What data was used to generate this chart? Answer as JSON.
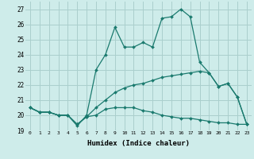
{
  "xlabel": "Humidex (Indice chaleur)",
  "background_color": "#ceecea",
  "grid_color": "#aacfcd",
  "line_color": "#1a7a6e",
  "x_ticks": [
    0,
    1,
    2,
    3,
    4,
    5,
    6,
    7,
    8,
    9,
    10,
    11,
    12,
    13,
    14,
    15,
    16,
    17,
    18,
    19,
    20,
    21,
    22,
    23
  ],
  "ylim": [
    19,
    27.5
  ],
  "yticks": [
    19,
    20,
    21,
    22,
    23,
    24,
    25,
    26,
    27
  ],
  "curve1_y": [
    20.5,
    20.2,
    20.2,
    20.0,
    20.0,
    19.3,
    20.0,
    23.0,
    24.0,
    25.8,
    24.5,
    24.5,
    24.8,
    24.5,
    26.4,
    26.5,
    27.0,
    26.5,
    23.5,
    22.8,
    21.9,
    22.1,
    21.2,
    19.4
  ],
  "curve2_y": [
    20.5,
    20.2,
    20.2,
    20.0,
    20.0,
    19.4,
    19.9,
    20.5,
    21.0,
    21.5,
    21.8,
    22.0,
    22.1,
    22.3,
    22.5,
    22.6,
    22.7,
    22.8,
    22.9,
    22.8,
    21.9,
    22.1,
    21.2,
    19.4
  ],
  "curve3_y": [
    20.5,
    20.2,
    20.2,
    20.0,
    20.0,
    19.4,
    19.9,
    20.0,
    20.4,
    20.5,
    20.5,
    20.5,
    20.3,
    20.2,
    20.0,
    19.9,
    19.8,
    19.8,
    19.7,
    19.6,
    19.5,
    19.5,
    19.4,
    19.4
  ]
}
